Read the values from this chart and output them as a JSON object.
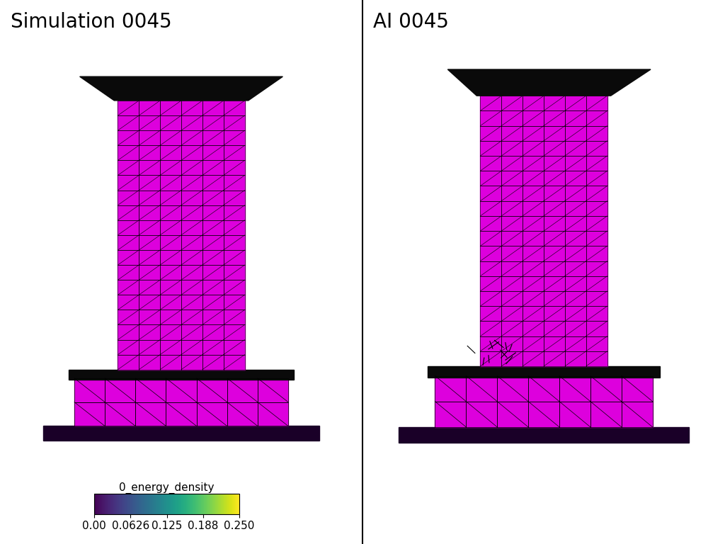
{
  "title_left": "Simulation 0045",
  "title_right": "AI 0045",
  "colorbar_label": "0_energy_density",
  "colorbar_ticks": [
    0.0,
    0.0626,
    0.125,
    0.188,
    0.25
  ],
  "colorbar_ticklabels": [
    "0.00",
    "0.0626",
    "0.125",
    "0.188",
    "0.250"
  ],
  "colormap": "viridis",
  "vmin": 0.0,
  "vmax": 0.25,
  "mesh_color": "#dd00dd",
  "mesh_dark": "#200020",
  "black_part": "#0a0a0a",
  "base_dark": "#1a0020",
  "background": "#ffffff",
  "title_fontsize": 20,
  "colorbar_fontsize": 11,
  "fig_width": 10.24,
  "fig_height": 7.68
}
